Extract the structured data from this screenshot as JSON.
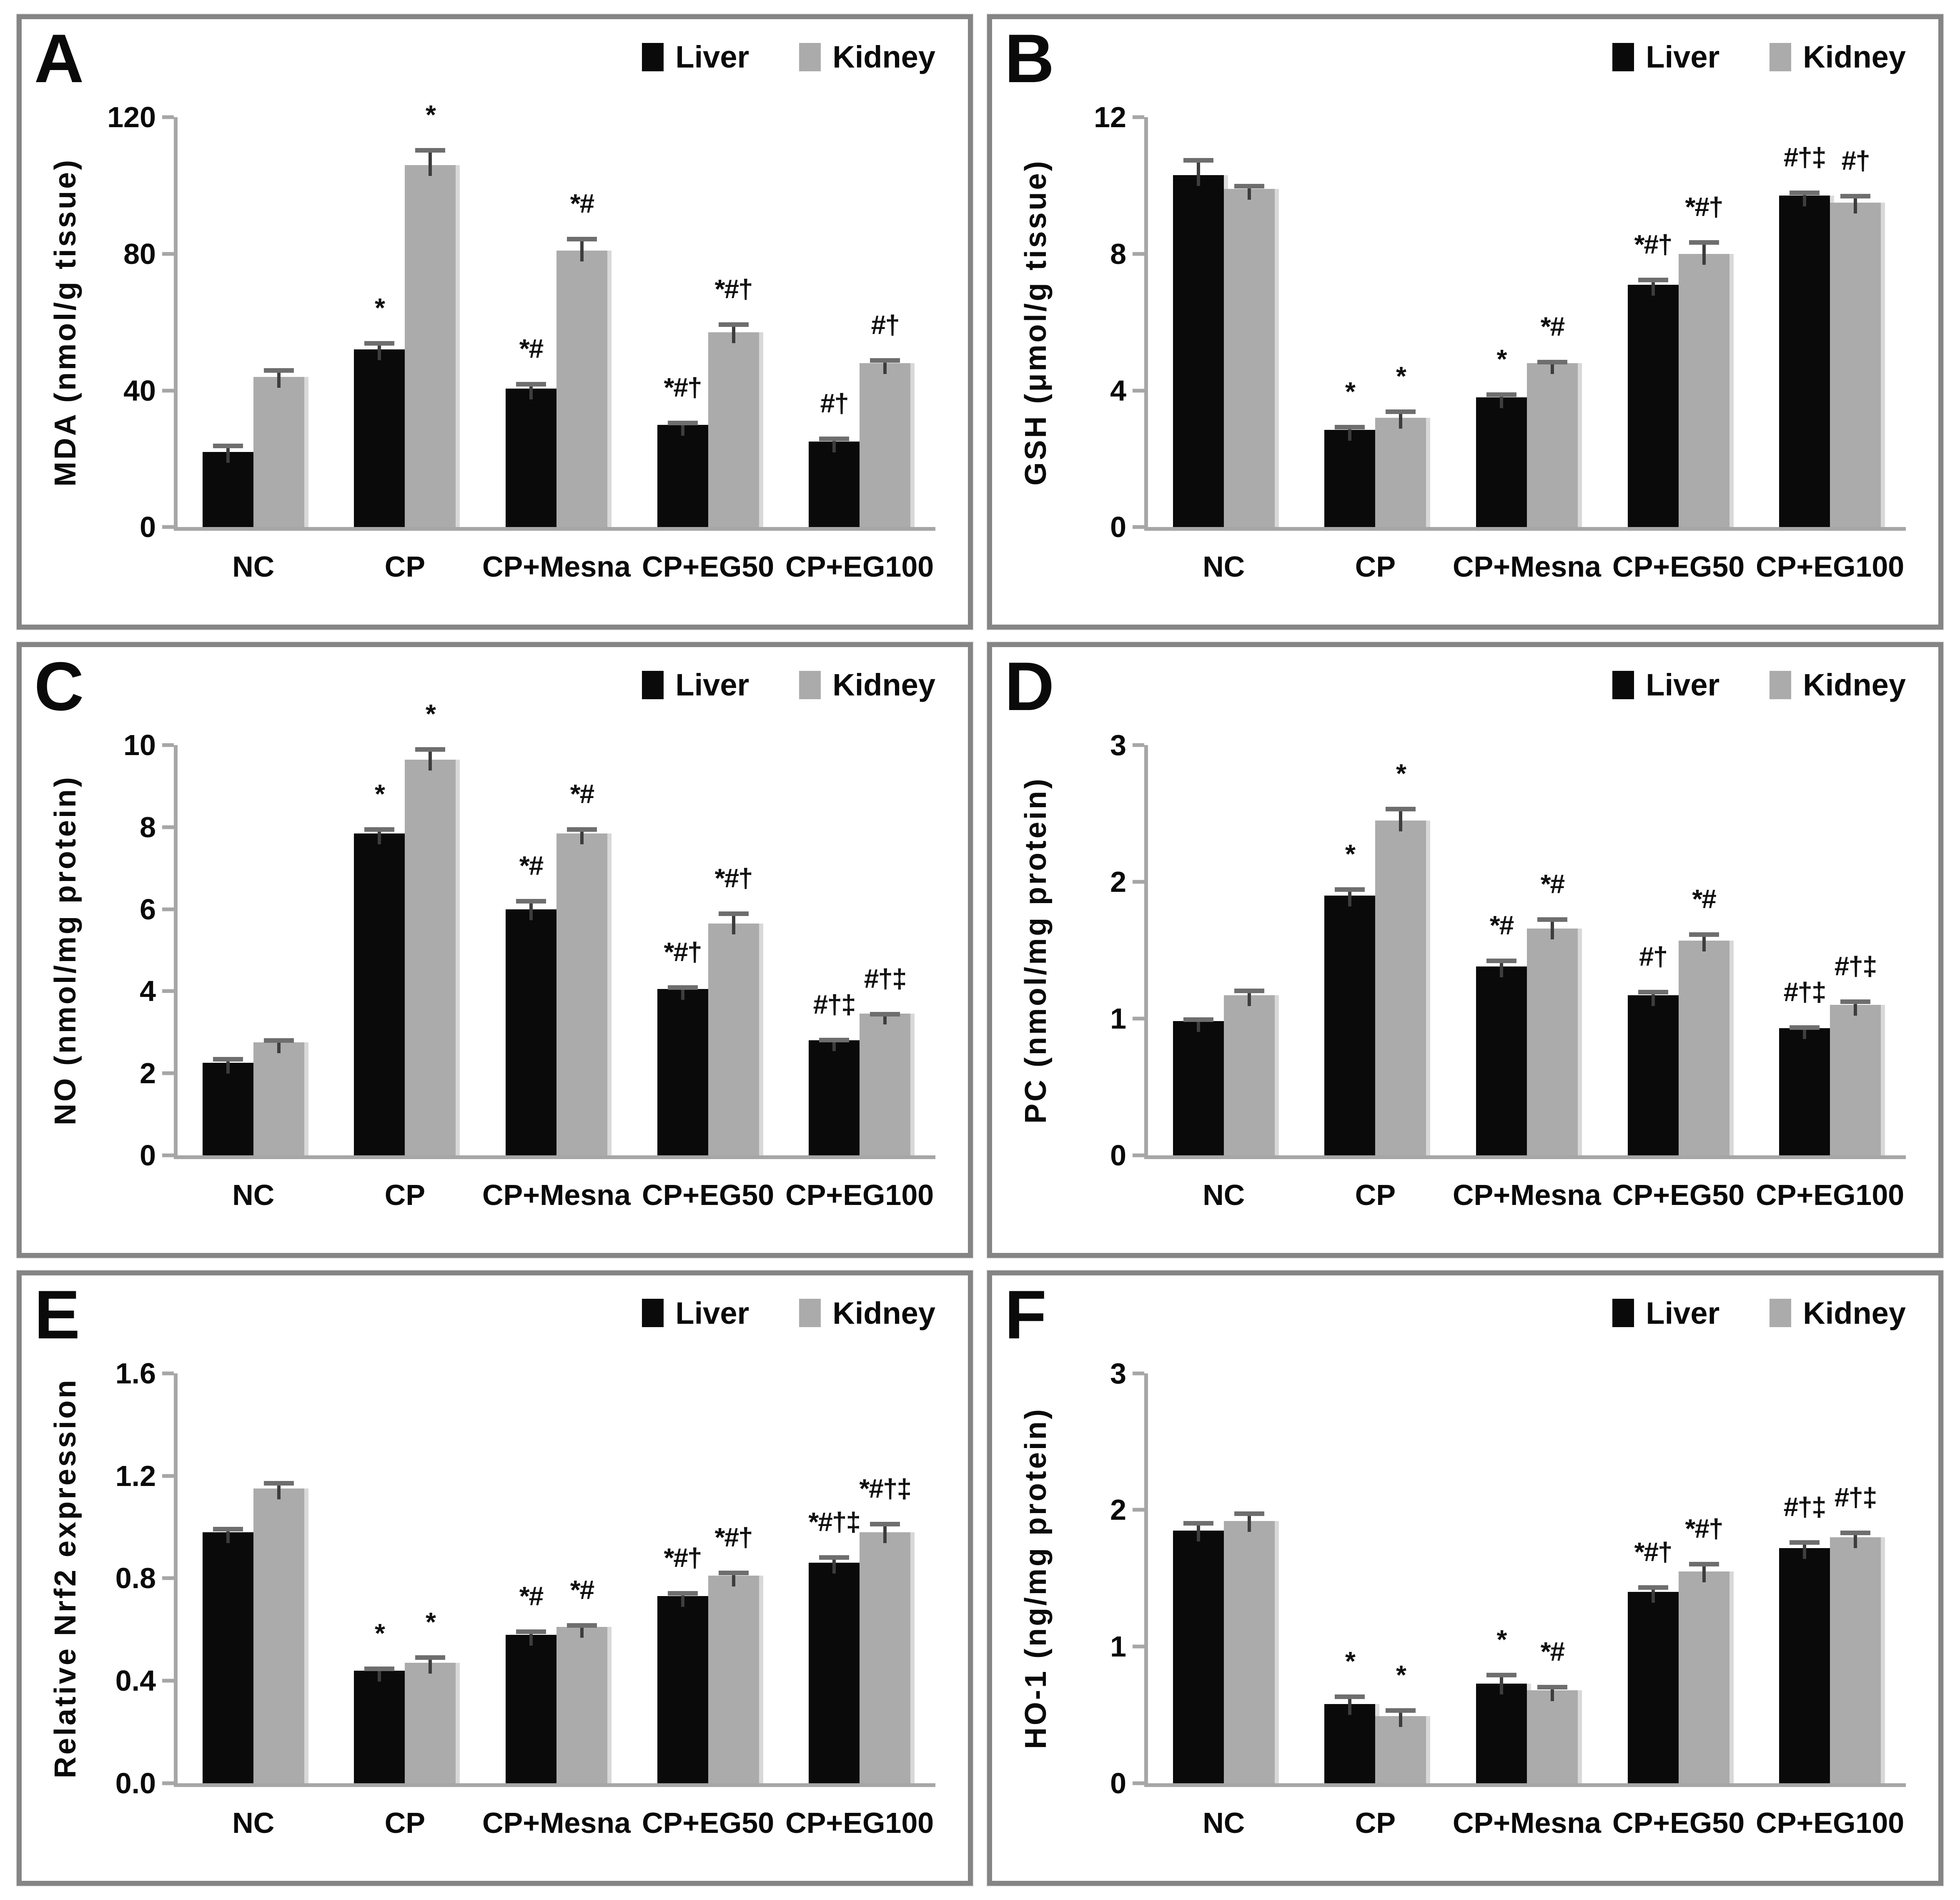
{
  "figure": {
    "legend": {
      "items": [
        {
          "label": "Liver",
          "color": "#0a0a0a"
        },
        {
          "label": "Kidney",
          "color": "#ababab"
        }
      ]
    },
    "groups": [
      "NC",
      "CP",
      "CP+Mesna",
      "CP+EG50",
      "CP+EG100"
    ],
    "colors": {
      "axis": "#a6a6a6",
      "border": "#858585",
      "error_bar": "#3d3d3d"
    }
  },
  "chart_data": [
    {
      "type": "bar",
      "letter": "A",
      "title": "",
      "ylabel": "MDA (nmol/g tissue)",
      "xlabel": "",
      "ylim": [
        0,
        120
      ],
      "yticks": [
        0,
        40,
        80,
        120
      ],
      "ytick_labels": [
        "0",
        "40",
        "80",
        "120"
      ],
      "categories": [
        "NC",
        "CP",
        "CP+Mesna",
        "CP+EG50",
        "CP+EG100"
      ],
      "grid": false,
      "legend_position": "top-right",
      "series": [
        {
          "name": "Liver",
          "values": [
            22,
            52,
            40.5,
            30,
            25
          ],
          "errors": [
            2.5,
            2.5,
            2,
            1.2,
            1.5
          ],
          "annotations": [
            "",
            "*",
            "*#",
            "*#†",
            "#†"
          ]
        },
        {
          "name": "Kidney",
          "values": [
            44,
            106,
            81,
            57,
            48
          ],
          "errors": [
            2.5,
            5,
            4,
            3,
            1.5
          ],
          "annotations": [
            "",
            "*",
            "*#",
            "*#†",
            "#†"
          ]
        }
      ]
    },
    {
      "type": "bar",
      "letter": "B",
      "title": "",
      "ylabel": "GSH (μmol/g tissue)",
      "xlabel": "",
      "ylim": [
        0,
        12
      ],
      "yticks": [
        0,
        4,
        8,
        12
      ],
      "ytick_labels": [
        "0",
        "4",
        "8",
        "12"
      ],
      "categories": [
        "NC",
        "CP",
        "CP+Mesna",
        "CP+EG50",
        "CP+EG100"
      ],
      "grid": false,
      "legend_position": "top-right",
      "series": [
        {
          "name": "Liver",
          "values": [
            10.3,
            2.85,
            3.8,
            7.1,
            9.7
          ],
          "errors": [
            0.5,
            0.15,
            0.15,
            0.2,
            0.15
          ],
          "annotations": [
            "",
            "*",
            "*",
            "*#†",
            "#†‡"
          ]
        },
        {
          "name": "Kidney",
          "values": [
            9.9,
            3.2,
            4.8,
            8.0,
            9.5
          ],
          "errors": [
            0.15,
            0.25,
            0.1,
            0.4,
            0.25
          ],
          "annotations": [
            "",
            "*",
            "*#",
            "*#†",
            "#†"
          ]
        }
      ]
    },
    {
      "type": "bar",
      "letter": "C",
      "title": "",
      "ylabel": "NO (nmol/mg protein)",
      "xlabel": "",
      "ylim": [
        0,
        10
      ],
      "yticks": [
        0,
        2,
        4,
        6,
        8,
        10
      ],
      "ytick_labels": [
        "0",
        "2",
        "4",
        "6",
        "8",
        "10"
      ],
      "categories": [
        "NC",
        "CP",
        "CP+Mesna",
        "CP+EG50",
        "CP+EG100"
      ],
      "grid": false,
      "legend_position": "top-right",
      "series": [
        {
          "name": "Liver",
          "values": [
            2.25,
            7.85,
            6.0,
            4.05,
            2.8
          ],
          "errors": [
            0.15,
            0.15,
            0.25,
            0.1,
            0.06
          ],
          "annotations": [
            "",
            "*",
            "*#",
            "*#†",
            "#†‡"
          ]
        },
        {
          "name": "Kidney",
          "values": [
            2.75,
            9.65,
            7.85,
            5.65,
            3.45
          ],
          "errors": [
            0.1,
            0.3,
            0.15,
            0.3,
            0.05
          ],
          "annotations": [
            "",
            "*",
            "*#",
            "*#†",
            "#†‡"
          ]
        }
      ]
    },
    {
      "type": "bar",
      "letter": "D",
      "title": "",
      "ylabel": "PC (nmol/mg protein)",
      "xlabel": "",
      "ylim": [
        0,
        3
      ],
      "yticks": [
        0,
        1,
        2,
        3
      ],
      "ytick_labels": [
        "0",
        "1",
        "2",
        "3"
      ],
      "categories": [
        "NC",
        "CP",
        "CP+Mesna",
        "CP+EG50",
        "CP+EG100"
      ],
      "grid": false,
      "legend_position": "top-right",
      "series": [
        {
          "name": "Liver",
          "values": [
            0.98,
            1.9,
            1.38,
            1.17,
            0.93
          ],
          "errors": [
            0.03,
            0.06,
            0.06,
            0.04,
            0.02
          ],
          "annotations": [
            "",
            "*",
            "*#",
            "#†",
            "#†‡"
          ]
        },
        {
          "name": "Kidney",
          "values": [
            1.17,
            2.45,
            1.66,
            1.57,
            1.1
          ],
          "errors": [
            0.05,
            0.1,
            0.08,
            0.06,
            0.04
          ],
          "annotations": [
            "",
            "*",
            "*#",
            "*#",
            "#†‡"
          ]
        }
      ]
    },
    {
      "type": "bar",
      "letter": "E",
      "title": "",
      "ylabel": "Relative Nrf2 expression",
      "xlabel": "",
      "ylim": [
        0,
        1.6
      ],
      "yticks": [
        0,
        0.4,
        0.8,
        1.2,
        1.6
      ],
      "ytick_labels": [
        "0.0",
        "0.4",
        "0.8",
        "1.2",
        "1.6"
      ],
      "categories": [
        "NC",
        "CP",
        "CP+Mesna",
        "CP+EG50",
        "CP+EG100"
      ],
      "grid": false,
      "legend_position": "top-right",
      "series": [
        {
          "name": "Liver",
          "values": [
            0.98,
            0.44,
            0.58,
            0.73,
            0.86
          ],
          "errors": [
            0.02,
            0.015,
            0.02,
            0.02,
            0.03
          ],
          "annotations": [
            "",
            "*",
            "*#",
            "*#†",
            "*#†‡"
          ]
        },
        {
          "name": "Kidney",
          "values": [
            1.15,
            0.47,
            0.61,
            0.81,
            0.98
          ],
          "errors": [
            0.03,
            0.03,
            0.015,
            0.02,
            0.04
          ],
          "annotations": [
            "",
            "*",
            "*#",
            "*#†",
            "*#†‡"
          ]
        }
      ]
    },
    {
      "type": "bar",
      "letter": "F",
      "title": "",
      "ylabel": "HO-1 (ng/mg protein)",
      "xlabel": "",
      "ylim": [
        0,
        3
      ],
      "yticks": [
        0,
        1,
        2,
        3
      ],
      "ytick_labels": [
        "0",
        "1",
        "2",
        "3"
      ],
      "categories": [
        "NC",
        "CP",
        "CP+Mesna",
        "CP+EG50",
        "CP+EG100"
      ],
      "grid": false,
      "legend_position": "top-right",
      "series": [
        {
          "name": "Liver",
          "values": [
            1.85,
            0.58,
            0.73,
            1.4,
            1.72
          ],
          "errors": [
            0.07,
            0.07,
            0.08,
            0.05,
            0.06
          ],
          "annotations": [
            "",
            "*",
            "*",
            "*#†",
            "#†‡"
          ]
        },
        {
          "name": "Kidney",
          "values": [
            1.92,
            0.49,
            0.68,
            1.55,
            1.8
          ],
          "errors": [
            0.07,
            0.06,
            0.04,
            0.07,
            0.05
          ],
          "annotations": [
            "",
            "*",
            "*#",
            "*#†",
            "#†‡"
          ]
        }
      ]
    }
  ]
}
